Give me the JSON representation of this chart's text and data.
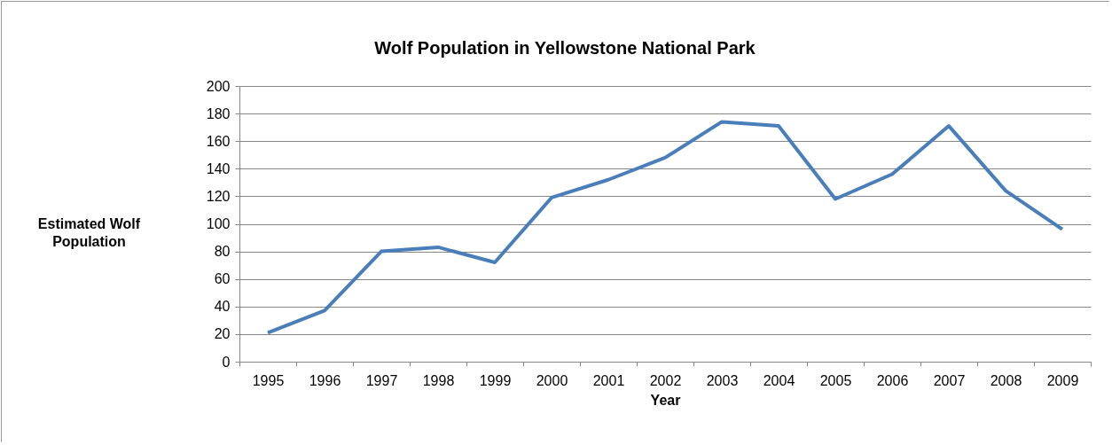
{
  "chart_data": {
    "type": "line",
    "title": "Wolf Population in Yellowstone National Park",
    "xlabel": "Year",
    "ylabel": "Estimated Wolf Population",
    "categories": [
      "1995",
      "1996",
      "1997",
      "1998",
      "1999",
      "2000",
      "2001",
      "2002",
      "2003",
      "2004",
      "2005",
      "2006",
      "2007",
      "2008",
      "2009"
    ],
    "series": [
      {
        "color": "#4a7ebb",
        "values": [
          21,
          37,
          80,
          83,
          72,
          119,
          132,
          148,
          174,
          171,
          118,
          136,
          171,
          124,
          96
        ]
      }
    ],
    "ylim": [
      0,
      200
    ],
    "yticks": [
      0,
      20,
      40,
      60,
      80,
      100,
      120,
      140,
      160,
      180,
      200
    ],
    "grid": "y",
    "legend": false,
    "marker": "none",
    "line_style": "solid"
  }
}
